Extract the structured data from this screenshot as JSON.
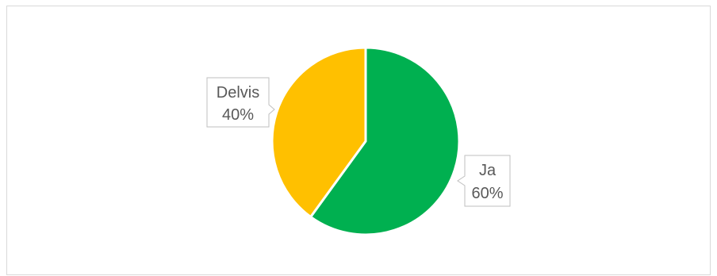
{
  "chart_data": {
    "type": "pie",
    "slices": [
      {
        "label": "Ja",
        "percent_label": "60%",
        "value": 60,
        "color": "#00B050"
      },
      {
        "label": "Delvis",
        "percent_label": "40%",
        "value": 40,
        "color": "#FFC000"
      }
    ]
  }
}
